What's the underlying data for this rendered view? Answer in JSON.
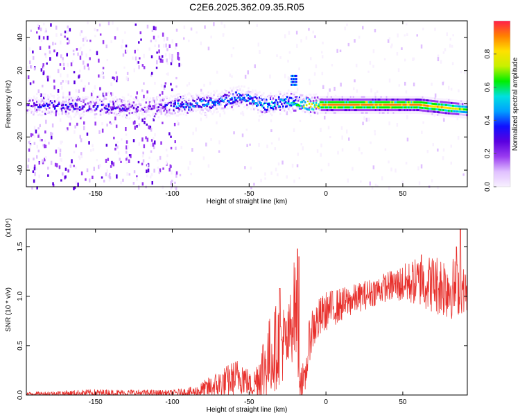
{
  "title": "C2E6.2025.362.09.35.R05",
  "chart_data": [
    {
      "type": "heatmap",
      "name": "spectrogram",
      "xlabel": "Height of straight line (km)",
      "ylabel": "Frequency (Hz)",
      "xlim": [
        -195,
        92
      ],
      "ylim": [
        -50,
        50
      ],
      "xticks": [
        -150,
        -100,
        -50,
        0,
        50
      ],
      "yticks": [
        -40,
        -20,
        0,
        20,
        40
      ],
      "xtick_labels": [
        "-150",
        "-100",
        "-50",
        "0",
        "50"
      ],
      "ytick_labels": [
        "-40",
        "-20",
        "0",
        "20",
        "40"
      ],
      "colorbar": {
        "label": "Normalized spectral amplitude",
        "range": [
          0,
          1
        ],
        "ticks": [
          0.0,
          0.2,
          0.4,
          0.6,
          0.8
        ],
        "tick_labels": [
          "0.0",
          "0.2",
          "0.4",
          "0.6",
          "0.8"
        ],
        "colors": [
          "#f8f0ff",
          "#e0c0ff",
          "#9a3cf0",
          "#5a00e0",
          "#1010ff",
          "#00a0ff",
          "#00e0e0",
          "#00ee00",
          "#c8f000",
          "#ffe000",
          "#ff8000",
          "#ff1f4a"
        ]
      },
      "signal_track": [
        {
          "x": -195,
          "f": 0,
          "a": 0.35
        },
        {
          "x": -150,
          "f": -1,
          "a": 0.4
        },
        {
          "x": -110,
          "f": -2,
          "a": 0.25
        },
        {
          "x": -100,
          "f": 0,
          "a": 0.45
        },
        {
          "x": -75,
          "f": 1,
          "a": 0.5
        },
        {
          "x": -55,
          "f": 5,
          "a": 0.5
        },
        {
          "x": -40,
          "f": 0,
          "a": 0.55
        },
        {
          "x": -25,
          "f": 2,
          "a": 0.55
        },
        {
          "x": -10,
          "f": 0,
          "a": 0.8
        },
        {
          "x": 0,
          "f": 0,
          "a": 0.95
        },
        {
          "x": 60,
          "f": 0,
          "a": 0.95
        },
        {
          "x": 80,
          "f": -2,
          "a": 0.85
        },
        {
          "x": 92,
          "f": -3,
          "a": 0.7
        }
      ],
      "side_feature": {
        "x": [
          -23,
          -19
        ],
        "f": [
          12,
          19
        ],
        "a": 0.45
      }
    },
    {
      "type": "line",
      "name": "snr",
      "xlabel": "Height of straight line (km)",
      "ylabel": "SNR (10 * v/v)",
      "scale_label": "(x10⁴)",
      "xlim": [
        -195,
        92
      ],
      "ylim": [
        0,
        1.68
      ],
      "xticks": [
        -150,
        -100,
        -50,
        0,
        50
      ],
      "yticks": [
        0.0,
        0.5,
        1.0,
        1.5
      ],
      "xtick_labels": [
        "-150",
        "-100",
        "-50",
        "0",
        "50"
      ],
      "ytick_labels": [
        "0.0",
        "0.5",
        "1.0",
        "1.5"
      ],
      "color": "#e8302c",
      "envelope": [
        {
          "x": -195,
          "base": 0.01,
          "amp": 0.02
        },
        {
          "x": -150,
          "base": 0.02,
          "amp": 0.04
        },
        {
          "x": -100,
          "base": 0.02,
          "amp": 0.03
        },
        {
          "x": -85,
          "base": 0.03,
          "amp": 0.06
        },
        {
          "x": -70,
          "base": 0.1,
          "amp": 0.15
        },
        {
          "x": -55,
          "base": 0.2,
          "amp": 0.2
        },
        {
          "x": -48,
          "base": 0.08,
          "amp": 0.1
        },
        {
          "x": -40,
          "base": 0.3,
          "amp": 0.4
        },
        {
          "x": -30,
          "base": 0.55,
          "amp": 0.45
        },
        {
          "x": -25,
          "base": 0.5,
          "amp": 0.35
        },
        {
          "x": -20,
          "base": 0.95,
          "amp": 0.5
        },
        {
          "x": -17,
          "base": 0.2,
          "amp": 0.3
        },
        {
          "x": -14,
          "base": 0.1,
          "amp": 0.15
        },
        {
          "x": -10,
          "base": 0.65,
          "amp": 0.25
        },
        {
          "x": 0,
          "base": 0.85,
          "amp": 0.2
        },
        {
          "x": 20,
          "base": 0.98,
          "amp": 0.15
        },
        {
          "x": 40,
          "base": 1.1,
          "amp": 0.15
        },
        {
          "x": 60,
          "base": 1.15,
          "amp": 0.25
        },
        {
          "x": 80,
          "base": 1.1,
          "amp": 0.35
        },
        {
          "x": 92,
          "base": 1.05,
          "amp": 0.2
        }
      ],
      "peaks": [
        {
          "x": -18.5,
          "y": 1.48
        },
        {
          "x": -17.5,
          "y": 1.4
        },
        {
          "x": -30,
          "y": 1.08
        },
        {
          "x": 87.5,
          "y": 1.68
        },
        {
          "x": 85,
          "y": 1.5
        },
        {
          "x": 62,
          "y": 1.42
        }
      ]
    }
  ]
}
